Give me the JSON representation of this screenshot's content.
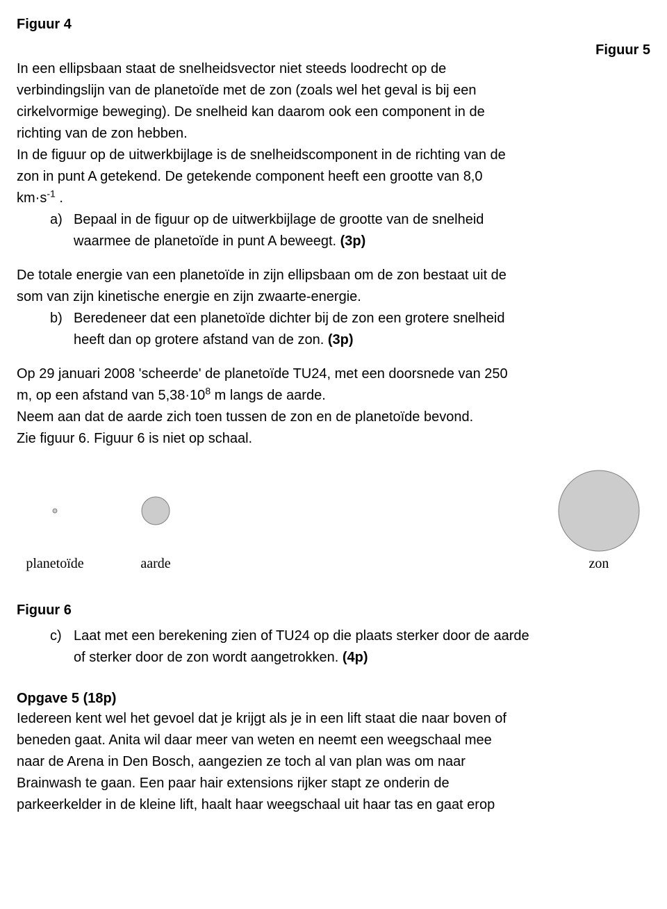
{
  "figures": {
    "fig4": "Figuur 4",
    "fig5": "Figuur 5",
    "fig6_label": "Figuur 6",
    "fig6": {
      "planet_label": "planetoïde",
      "aarde_label": "aarde",
      "zon_label": "zon",
      "planet_radius": 3,
      "aarde_radius": 20,
      "zon_radius": 58,
      "fill": "#cccccc",
      "stroke": "#808080",
      "label_color": "#000000",
      "label_font": "20px 'Times New Roman', serif",
      "bg": "#ffffff"
    }
  },
  "para1": {
    "l1": "In een ellipsbaan staat de snelheidsvector niet steeds loodrecht op de",
    "l2": "verbindingslijn van de planetoïde met de zon (zoals wel het geval is bij een",
    "l3": "cirkelvormige beweging). De snelheid kan daarom ook een component in de",
    "l4": "richting van de zon hebben.",
    "l5": "In de figuur op de uitwerkbijlage is de snelheidscomponent in de richting van de",
    "l6": "zon in punt A getekend. De getekende component heeft een grootte van 8,0",
    "l7a": "km·s",
    "l7b": " ."
  },
  "item_a": {
    "marker": "a)",
    "l1": "Bepaal in de figuur op de uitwerkbijlage de grootte van de snelheid",
    "l2a": "waarmee de planetoïde in punt A beweegt. ",
    "points": "(3p)"
  },
  "para2": {
    "l1": "De totale energie van een planetoïde in zijn ellipsbaan om de zon bestaat uit de",
    "l2": "som van zijn kinetische energie en zijn zwaarte-energie."
  },
  "item_b": {
    "marker": "b)",
    "l1": "Beredeneer dat een planetoïde dichter bij de zon een grotere snelheid",
    "l2a": "heeft dan op grotere afstand van de zon. ",
    "points": "(3p)"
  },
  "para3": {
    "l1": "Op 29 januari 2008 'scheerde' de planetoïde TU24, met een doorsnede van 250",
    "l2a": "m, op een afstand van 5,38·10",
    "l2b": " m langs de aarde.",
    "l3": "Neem aan dat de aarde zich toen tussen de zon en de planetoïde bevond.",
    "l4": "Zie figuur 6. Figuur 6 is niet op schaal."
  },
  "item_c": {
    "marker": "c)",
    "l1": "Laat met een berekening zien of TU24 op die plaats sterker door de aarde",
    "l2a": "of sterker door de zon wordt aangetrokken. ",
    "points": "(4p)"
  },
  "opgave5": {
    "title": "Opgave 5 (18p)",
    "l1": "Iedereen kent wel het gevoel dat je krijgt als je in een lift staat die naar boven of",
    "l2": "beneden gaat. Anita wil daar meer van weten en neemt een weegschaal mee",
    "l3": "naar de Arena in Den Bosch, aangezien ze toch al van plan was om naar",
    "l4": "Brainwash te gaan. Een paar hair extensions rijker stapt ze onderin de",
    "l5": "parkeerkelder in de kleine lift, haalt haar weegschaal uit haar tas en gaat erop"
  },
  "exponents": {
    "neg1": "-1",
    "eight": "8"
  }
}
